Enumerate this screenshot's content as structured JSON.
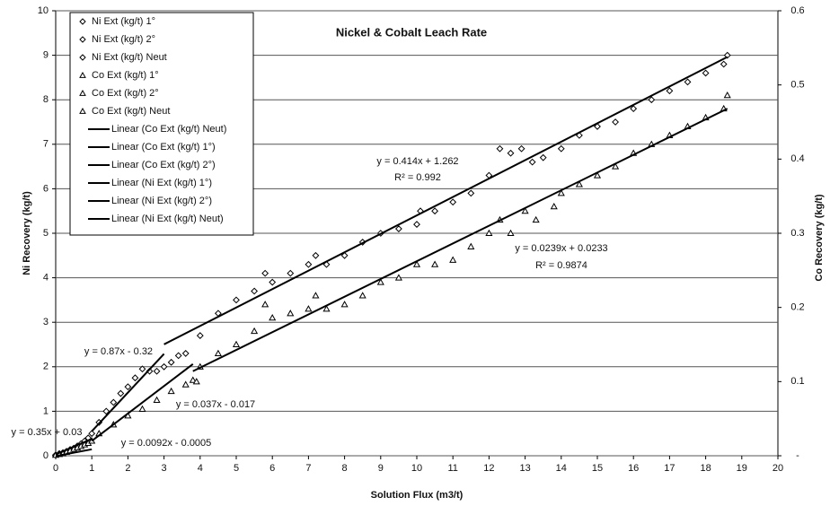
{
  "chart_data": {
    "type": "scatter",
    "title": "Nickel & Cobalt Leach Rate",
    "xlabel": "Solution Flux (m3/t)",
    "ylabel": "Ni Recovery (kg/t)",
    "y2label": "Co Recovery (kg/t)",
    "xlim": [
      0,
      20
    ],
    "xticks": [
      0,
      1,
      2,
      3,
      4,
      5,
      6,
      7,
      8,
      9,
      10,
      11,
      12,
      13,
      14,
      15,
      16,
      17,
      18,
      19,
      20
    ],
    "ylim": [
      0,
      10
    ],
    "yticks": [
      0,
      1,
      2,
      3,
      4,
      5,
      6,
      7,
      8,
      9,
      10
    ],
    "y2lim": [
      0,
      0.6
    ],
    "y2ticks": [
      {
        "value": 0,
        "label": "-"
      },
      0.1,
      0.2,
      0.3,
      0.4,
      0.5,
      0.6
    ],
    "grid": true,
    "legend": "upper left",
    "series": [
      {
        "name": "Ni Ext (kg/t) 1°",
        "marker": "diamond",
        "color": "#000000",
        "x": [
          0,
          0.1,
          0.2,
          0.3,
          0.4,
          0.5,
          0.6,
          0.7,
          0.8,
          0.9,
          1.0
        ],
        "values": [
          0.02,
          0.05,
          0.07,
          0.1,
          0.14,
          0.17,
          0.22,
          0.27,
          0.33,
          0.4,
          0.5
        ]
      },
      {
        "name": "Ni Ext (kg/t) 2°",
        "marker": "diamond",
        "color": "#000000",
        "x": [
          1.2,
          1.4,
          1.6,
          1.8,
          2.0,
          2.2,
          2.4,
          2.6,
          2.8,
          3.0,
          3.2,
          3.4
        ],
        "values": [
          0.75,
          1.0,
          1.2,
          1.4,
          1.55,
          1.75,
          1.95,
          1.9,
          1.9,
          2.0,
          2.1,
          2.25
        ]
      },
      {
        "name": "Ni Ext (kg/t) Neut",
        "marker": "diamond",
        "color": "#000000",
        "x": [
          3.6,
          4,
          4.5,
          5,
          5.5,
          5.8,
          6,
          6.5,
          7,
          7.2,
          7.5,
          8,
          8.5,
          9,
          9.5,
          10,
          10.1,
          10.5,
          11,
          11.5,
          12,
          12.3,
          12.6,
          12.9,
          13.2,
          13.5,
          14,
          14.5,
          15,
          15.5,
          16,
          16.5,
          17,
          17.5,
          18,
          18.5,
          18.6
        ],
        "values": [
          2.3,
          2.7,
          3.2,
          3.5,
          3.7,
          4.1,
          3.9,
          4.1,
          4.3,
          4.5,
          4.3,
          4.5,
          4.8,
          5.0,
          5.1,
          5.2,
          5.5,
          5.5,
          5.7,
          5.9,
          6.3,
          6.9,
          6.8,
          6.9,
          6.6,
          6.7,
          6.9,
          7.2,
          7.4,
          7.5,
          7.8,
          8.0,
          8.2,
          8.4,
          8.6,
          8.8,
          9.0
        ]
      },
      {
        "name": "Co Ext (kg/t) 1°",
        "marker": "triangle",
        "color": "#000000",
        "axis": "y2",
        "x": [
          0,
          0.1,
          0.2,
          0.3,
          0.4,
          0.5,
          0.6,
          0.7,
          0.8,
          0.9,
          1.0
        ],
        "values": [
          0.001,
          0.002,
          0.003,
          0.005,
          0.007,
          0.009,
          0.011,
          0.013,
          0.015,
          0.017,
          0.02
        ]
      },
      {
        "name": "Co Ext (kg/t) 2°",
        "marker": "triangle",
        "color": "#000000",
        "axis": "y2",
        "x": [
          1.2,
          1.6,
          2.0,
          2.4,
          2.8,
          3.2,
          3.6,
          3.8
        ],
        "values": [
          0.03,
          0.042,
          0.054,
          0.063,
          0.075,
          0.087,
          0.096,
          0.102
        ]
      },
      {
        "name": "Co Ext (kg/t) Neut",
        "marker": "triangle",
        "color": "#000000",
        "axis": "y2",
        "x": [
          3.9,
          4,
          4.5,
          5,
          5.5,
          5.8,
          6,
          6.5,
          7,
          7.2,
          7.5,
          8,
          8.5,
          9,
          9.5,
          10,
          10.5,
          11,
          11.5,
          12,
          12.3,
          12.6,
          13,
          13.3,
          13.8,
          14,
          14.5,
          15,
          15.5,
          16,
          16.5,
          17,
          17.5,
          18,
          18.5,
          18.6
        ],
        "values": [
          0.1,
          0.12,
          0.138,
          0.15,
          0.168,
          0.204,
          0.186,
          0.192,
          0.198,
          0.216,
          0.198,
          0.204,
          0.216,
          0.234,
          0.24,
          0.258,
          0.258,
          0.264,
          0.282,
          0.3,
          0.318,
          0.3,
          0.33,
          0.318,
          0.336,
          0.354,
          0.366,
          0.378,
          0.39,
          0.408,
          0.42,
          0.432,
          0.444,
          0.456,
          0.468,
          0.486
        ]
      },
      {
        "name": "Linear (Co Ext (kg/t) Neut)",
        "marker": "line",
        "color": "#000000",
        "axis": "y2",
        "x": [
          3.8,
          18.6
        ],
        "values": [
          0.114,
          0.468
        ]
      },
      {
        "name": "Linear (Co Ext (kg/t) 1°)",
        "marker": "line",
        "color": "#000000",
        "axis": "y2",
        "x": [
          0,
          1
        ],
        "values": [
          -0.0005,
          0.0087
        ]
      },
      {
        "name": "Linear (Co Ext (kg/t) 2°)",
        "marker": "line",
        "color": "#000000",
        "axis": "y2",
        "x": [
          1,
          3.8
        ],
        "values": [
          0.02,
          0.1236
        ]
      },
      {
        "name": "Linear (Ni Ext (kg/t) 1°)",
        "marker": "line",
        "color": "#000000",
        "x": [
          0,
          1
        ],
        "values": [
          0.03,
          0.38
        ]
      },
      {
        "name": "Linear (Ni Ext (kg/t) 2°)",
        "marker": "line",
        "color": "#000000",
        "x": [
          1,
          3
        ],
        "values": [
          0.55,
          2.29
        ]
      },
      {
        "name": "Linear (Ni Ext (kg/t) Neut)",
        "marker": "line",
        "color": "#000000",
        "x": [
          3,
          18.6
        ],
        "values": [
          2.504,
          8.962
        ]
      }
    ],
    "annotations": [
      "y = 0.414x + 1.262",
      "R² = 0.992",
      "y = 0.0239x + 0.0233",
      "R² = 0.9874",
      "y = 0.87x - 0.32",
      "y = 0.037x - 0.017",
      "y = 0.35x + 0.03",
      "y = 0.0092x - 0.0005"
    ]
  }
}
